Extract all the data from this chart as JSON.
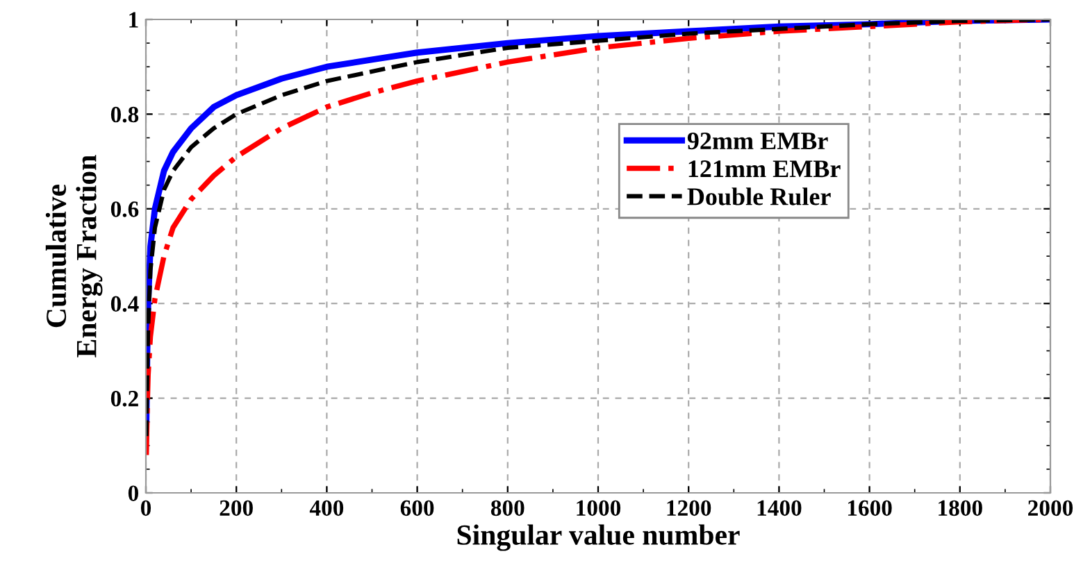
{
  "chart_data": {
    "type": "line",
    "xlabel": "Singular value number",
    "ylabel": "Cumulative\nEnergy Fraction",
    "xlim": [
      0,
      2000
    ],
    "ylim": [
      0,
      1
    ],
    "xticks": [
      0,
      200,
      400,
      600,
      800,
      1000,
      1200,
      1400,
      1600,
      1800,
      2000
    ],
    "yticks": [
      0,
      0.2,
      0.4,
      0.6,
      0.8,
      1
    ],
    "grid": true,
    "legend": "right",
    "series": [
      {
        "name": "92mm EMBr",
        "color": "#0000ff",
        "line_style": "solid",
        "x": [
          1,
          3,
          5,
          10,
          20,
          40,
          60,
          100,
          150,
          200,
          300,
          400,
          500,
          600,
          800,
          1000,
          1200,
          1400,
          1600,
          1800,
          2000
        ],
        "values": [
          0.15,
          0.3,
          0.4,
          0.52,
          0.6,
          0.68,
          0.72,
          0.77,
          0.815,
          0.84,
          0.875,
          0.9,
          0.915,
          0.93,
          0.95,
          0.965,
          0.975,
          0.985,
          0.99,
          0.997,
          1
        ]
      },
      {
        "name": "121mm EMBr",
        "color": "#ff0000",
        "line_style": "dashdot",
        "x": [
          1,
          3,
          5,
          10,
          20,
          40,
          60,
          100,
          150,
          200,
          300,
          400,
          500,
          600,
          800,
          1000,
          1200,
          1400,
          1600,
          1800,
          2000
        ],
        "values": [
          0.08,
          0.18,
          0.25,
          0.33,
          0.41,
          0.5,
          0.56,
          0.62,
          0.67,
          0.71,
          0.77,
          0.815,
          0.845,
          0.87,
          0.91,
          0.94,
          0.96,
          0.975,
          0.985,
          0.995,
          1
        ]
      },
      {
        "name": "Double Ruler",
        "color": "#000000",
        "line_style": "dashed",
        "x": [
          1,
          3,
          5,
          10,
          20,
          40,
          60,
          100,
          150,
          200,
          300,
          400,
          500,
          600,
          800,
          1000,
          1200,
          1400,
          1600,
          1800,
          2000
        ],
        "values": [
          0.12,
          0.25,
          0.35,
          0.47,
          0.56,
          0.64,
          0.68,
          0.73,
          0.77,
          0.8,
          0.84,
          0.87,
          0.89,
          0.91,
          0.94,
          0.955,
          0.97,
          0.98,
          0.99,
          0.997,
          1
        ]
      }
    ]
  }
}
